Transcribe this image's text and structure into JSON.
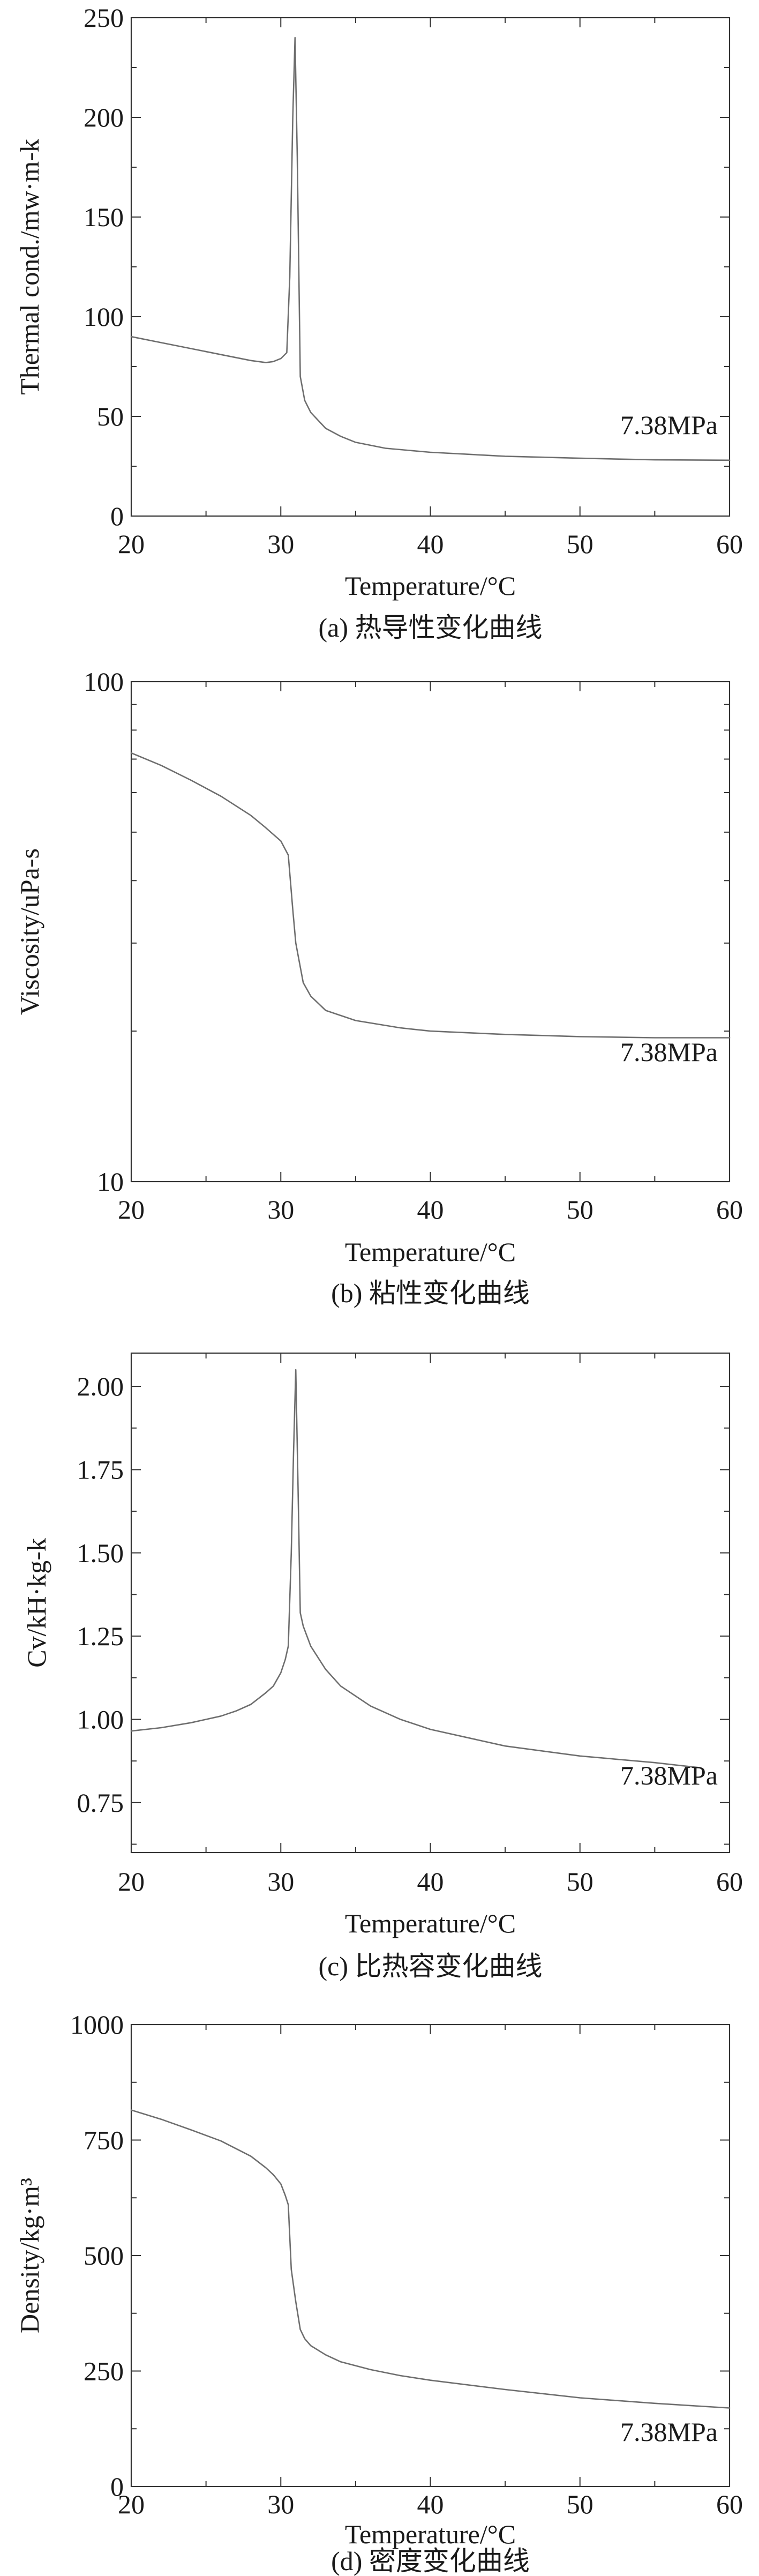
{
  "chart_data": [
    {
      "type": "line",
      "caption": "(a) 热导性变化曲线",
      "xlabel": "Temperature/°C",
      "ylabel": "Thermal cond./mw·m-k",
      "annotation": "7.38MPa",
      "xlim": [
        20,
        60
      ],
      "ylim": [
        0,
        250
      ],
      "yscale": "linear",
      "xticks": [
        20,
        30,
        40,
        50,
        60
      ],
      "yticks": [
        0,
        50,
        100,
        150,
        200,
        250
      ],
      "ytick_labels": [
        "0",
        "50",
        "100",
        "150",
        "200",
        "250"
      ],
      "series": [
        {
          "name": "7.38MPa",
          "x": [
            20,
            22,
            24,
            26,
            28,
            29,
            29.5,
            30,
            30.4,
            30.6,
            30.8,
            30.95,
            31.1,
            31.3,
            31.6,
            32,
            33,
            34,
            35,
            37,
            40,
            45,
            50,
            55,
            60
          ],
          "y": [
            90,
            87,
            84,
            81,
            78,
            77,
            77.5,
            79,
            82,
            120,
            200,
            240,
            180,
            70,
            58,
            52,
            44,
            40,
            37,
            34,
            32,
            30,
            29,
            28.2,
            28
          ]
        }
      ]
    },
    {
      "type": "line",
      "caption": "(b) 粘性变化曲线",
      "xlabel": "Temperature/°C",
      "ylabel": "Viscosity/uPa-s",
      "annotation": "7.38MPa",
      "xlim": [
        20,
        60
      ],
      "ylim": [
        10,
        100
      ],
      "yscale": "log",
      "xticks": [
        20,
        30,
        40,
        50,
        60
      ],
      "yticks": [
        10,
        100
      ],
      "ytick_labels": [
        "10",
        "100"
      ],
      "series": [
        {
          "name": "7.38MPa",
          "x": [
            20,
            22,
            24,
            26,
            28,
            29,
            30,
            30.5,
            30.8,
            31,
            31.5,
            32,
            33,
            35,
            38,
            40,
            45,
            50,
            55,
            60
          ],
          "y": [
            72,
            68,
            63.5,
            59,
            54,
            51,
            48,
            45,
            35,
            30,
            25,
            23.5,
            22,
            21,
            20.3,
            20,
            19.7,
            19.5,
            19.4,
            19.4
          ]
        }
      ]
    },
    {
      "type": "line",
      "caption": "(c) 比热容变化曲线",
      "xlabel": "Temperature/°C",
      "ylabel": "Cv/kH·kg-k",
      "annotation": "7.38MPa",
      "xlim": [
        20,
        60
      ],
      "ylim": [
        0.6,
        2.1
      ],
      "yscale": "linear",
      "xticks": [
        20,
        30,
        40,
        50,
        60
      ],
      "yticks": [
        0.75,
        1.0,
        1.25,
        1.5,
        1.75,
        2.0
      ],
      "ytick_labels": [
        "0.75",
        "1.00",
        "1.25",
        "1.50",
        "1.75",
        "2.00"
      ],
      "series": [
        {
          "name": "7.38MPa",
          "x": [
            20,
            22,
            24,
            26,
            27,
            28,
            29,
            29.5,
            30,
            30.3,
            30.5,
            30.7,
            30.85,
            31,
            31.15,
            31.3,
            31.5,
            32,
            33,
            34,
            36,
            38,
            40,
            45,
            50,
            55,
            58
          ],
          "y": [
            0.965,
            0.975,
            0.99,
            1.01,
            1.025,
            1.045,
            1.08,
            1.1,
            1.14,
            1.18,
            1.22,
            1.5,
            1.8,
            2.05,
            1.7,
            1.32,
            1.28,
            1.22,
            1.15,
            1.1,
            1.04,
            1.0,
            0.97,
            0.92,
            0.89,
            0.87,
            0.855
          ]
        }
      ]
    },
    {
      "type": "line",
      "caption": "(d) 密度变化曲线",
      "xlabel": "Temperature/°C",
      "ylabel": "Density/kg·m³",
      "annotation": "7.38MPa",
      "xlim": [
        20,
        60
      ],
      "ylim": [
        0,
        1000
      ],
      "yscale": "linear",
      "xticks": [
        20,
        30,
        40,
        50,
        60
      ],
      "yticks": [
        0,
        250,
        500,
        750,
        1000
      ],
      "ytick_labels": [
        "0",
        "250",
        "500",
        "750",
        "1000"
      ],
      "series": [
        {
          "name": "7.38MPa",
          "x": [
            20,
            22,
            24,
            26,
            28,
            29,
            29.5,
            30,
            30.3,
            30.5,
            30.7,
            31,
            31.3,
            31.6,
            32,
            33,
            34,
            36,
            38,
            40,
            45,
            50,
            55,
            60
          ],
          "y": [
            815,
            795,
            772,
            748,
            715,
            690,
            675,
            655,
            630,
            610,
            470,
            400,
            340,
            320,
            305,
            285,
            270,
            253,
            240,
            230,
            210,
            192,
            180,
            170
          ]
        }
      ]
    }
  ]
}
